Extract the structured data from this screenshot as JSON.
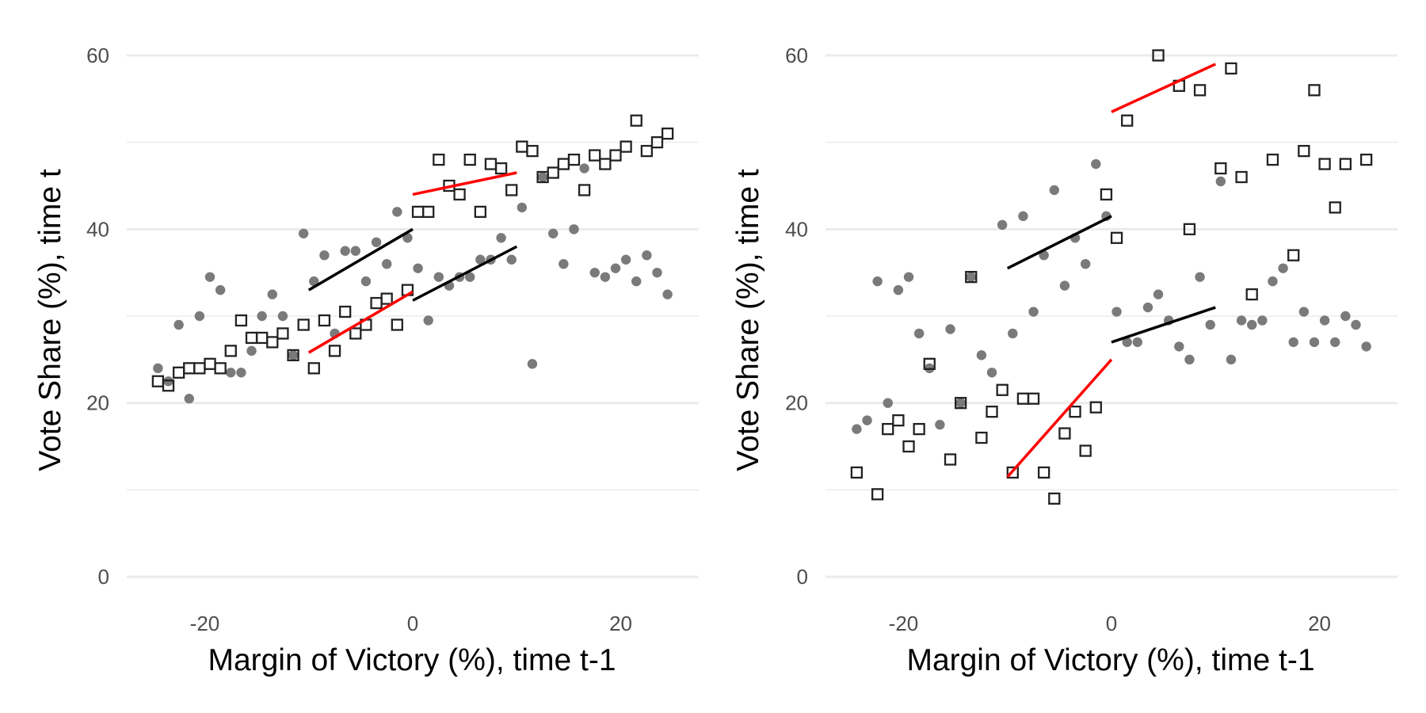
{
  "colors": {
    "background": "#ffffff",
    "grid": "#ebebeb",
    "dot": "#7a7a7a",
    "square": "#222222",
    "fit_black": "#000000",
    "fit_red": "#ff0000",
    "tick_text": "#4d4d4d",
    "axis_title": "#000000"
  },
  "chart_data": [
    {
      "type": "scatter",
      "panel": "left",
      "xlabel": "Margin of Victory (%), time t-1",
      "ylabel": "Vote Share (%), time t",
      "xlim": [
        -27.5,
        27.5
      ],
      "ylim": [
        -2,
        62
      ],
      "xticks": [
        -20,
        0,
        20
      ],
      "xtick_labels": [
        "-20",
        "0",
        "20"
      ],
      "yticks": [
        0,
        20,
        40,
        60
      ],
      "ytick_labels": [
        "0",
        "20",
        "40",
        "60"
      ],
      "grid": true,
      "series": [
        {
          "marker": "circle",
          "points": [
            [
              -24.5,
              24
            ],
            [
              -23.5,
              22.5
            ],
            [
              -22.5,
              29
            ],
            [
              -21.5,
              20.5
            ],
            [
              -20.5,
              30
            ],
            [
              -19.5,
              34.5
            ],
            [
              -18.5,
              33
            ],
            [
              -17.5,
              23.5
            ],
            [
              -16.5,
              23.5
            ],
            [
              -15.5,
              26
            ],
            [
              -14.5,
              30
            ],
            [
              -13.5,
              32.5
            ],
            [
              -12.5,
              30
            ],
            [
              -11.5,
              25.5
            ],
            [
              -10.5,
              39.5
            ],
            [
              -9.5,
              34
            ],
            [
              -8.5,
              37
            ],
            [
              -7.5,
              28
            ],
            [
              -6.5,
              37.5
            ],
            [
              -5.5,
              37.5
            ],
            [
              -4.5,
              34
            ],
            [
              -3.5,
              38.5
            ],
            [
              -2.5,
              36
            ],
            [
              -1.5,
              42
            ],
            [
              -0.5,
              39
            ],
            [
              0.5,
              35.5
            ],
            [
              1.5,
              29.5
            ],
            [
              2.5,
              34.5
            ],
            [
              3.5,
              33.5
            ],
            [
              4.5,
              34.5
            ],
            [
              5.5,
              34.5
            ],
            [
              6.5,
              36.5
            ],
            [
              7.5,
              36.5
            ],
            [
              8.5,
              39
            ],
            [
              9.5,
              36.5
            ],
            [
              10.5,
              42.5
            ],
            [
              11.5,
              24.5
            ],
            [
              12.5,
              46
            ],
            [
              13.5,
              39.5
            ],
            [
              14.5,
              36
            ],
            [
              15.5,
              40
            ],
            [
              16.5,
              47
            ],
            [
              17.5,
              35
            ],
            [
              18.5,
              34.5
            ],
            [
              19.5,
              35.5
            ],
            [
              20.5,
              36.5
            ],
            [
              21.5,
              34
            ],
            [
              22.5,
              37
            ],
            [
              23.5,
              35
            ],
            [
              24.5,
              32.5
            ]
          ]
        },
        {
          "marker": "square",
          "points": [
            [
              -24.5,
              22.5
            ],
            [
              -23.5,
              22
            ],
            [
              -22.5,
              23.5
            ],
            [
              -21.5,
              24
            ],
            [
              -20.5,
              24
            ],
            [
              -19.5,
              24.5
            ],
            [
              -18.5,
              24
            ],
            [
              -17.5,
              26
            ],
            [
              -16.5,
              29.5
            ],
            [
              -15.5,
              27.5
            ],
            [
              -14.5,
              27.5
            ],
            [
              -13.5,
              27
            ],
            [
              -12.5,
              28
            ],
            [
              -11.5,
              25.5
            ],
            [
              -10.5,
              29
            ],
            [
              -9.5,
              24
            ],
            [
              -8.5,
              29.5
            ],
            [
              -7.5,
              26
            ],
            [
              -6.5,
              30.5
            ],
            [
              -5.5,
              28
            ],
            [
              -4.5,
              29
            ],
            [
              -3.5,
              31.5
            ],
            [
              -2.5,
              32
            ],
            [
              -1.5,
              29
            ],
            [
              -0.5,
              33
            ],
            [
              0.5,
              42
            ],
            [
              1.5,
              42
            ],
            [
              2.5,
              48
            ],
            [
              3.5,
              45
            ],
            [
              4.5,
              44
            ],
            [
              5.5,
              48
            ],
            [
              6.5,
              42
            ],
            [
              7.5,
              47.5
            ],
            [
              8.5,
              47
            ],
            [
              9.5,
              44.5
            ],
            [
              10.5,
              49.5
            ],
            [
              11.5,
              49
            ],
            [
              12.5,
              46
            ],
            [
              13.5,
              46.5
            ],
            [
              14.5,
              47.5
            ],
            [
              15.5,
              48
            ],
            [
              16.5,
              44.5
            ],
            [
              17.5,
              48.5
            ],
            [
              18.5,
              47.5
            ],
            [
              19.5,
              48.5
            ],
            [
              20.5,
              49.5
            ],
            [
              21.5,
              52.5
            ],
            [
              22.5,
              49
            ],
            [
              23.5,
              50
            ],
            [
              24.5,
              51
            ]
          ]
        }
      ],
      "fit_lines": [
        {
          "color": "black",
          "x": [
            -10,
            0
          ],
          "y": [
            33,
            40
          ]
        },
        {
          "color": "black",
          "x": [
            0,
            10
          ],
          "y": [
            31.8,
            38
          ]
        },
        {
          "color": "red",
          "x": [
            -10,
            0
          ],
          "y": [
            25.8,
            32.8
          ]
        },
        {
          "color": "red",
          "x": [
            0,
            10
          ],
          "y": [
            44,
            46.5
          ]
        }
      ]
    },
    {
      "type": "scatter",
      "panel": "right",
      "xlabel": "Margin of Victory (%), time t-1",
      "ylabel": "Vote Share (%), time t",
      "xlim": [
        -27.5,
        27.5
      ],
      "ylim": [
        -2,
        62
      ],
      "xticks": [
        -20,
        0,
        20
      ],
      "xtick_labels": [
        "-20",
        "0",
        "20"
      ],
      "yticks": [
        0,
        20,
        40,
        60
      ],
      "ytick_labels": [
        "0",
        "20",
        "40",
        "60"
      ],
      "grid": true,
      "series": [
        {
          "marker": "circle",
          "points": [
            [
              -24.5,
              17
            ],
            [
              -23.5,
              18
            ],
            [
              -22.5,
              34
            ],
            [
              -21.5,
              20
            ],
            [
              -20.5,
              33
            ],
            [
              -19.5,
              34.5
            ],
            [
              -18.5,
              28
            ],
            [
              -17.5,
              24
            ],
            [
              -16.5,
              17.5
            ],
            [
              -15.5,
              28.5
            ],
            [
              -14.5,
              20
            ],
            [
              -13.5,
              34.5
            ],
            [
              -12.5,
              25.5
            ],
            [
              -11.5,
              23.5
            ],
            [
              -10.5,
              40.5
            ],
            [
              -9.5,
              28
            ],
            [
              -8.5,
              41.5
            ],
            [
              -7.5,
              30.5
            ],
            [
              -6.5,
              37
            ],
            [
              -5.5,
              44.5
            ],
            [
              -4.5,
              33.5
            ],
            [
              -3.5,
              39
            ],
            [
              -2.5,
              36
            ],
            [
              -1.5,
              47.5
            ],
            [
              -0.5,
              41.5
            ],
            [
              0.5,
              30.5
            ],
            [
              1.5,
              27
            ],
            [
              2.5,
              27
            ],
            [
              3.5,
              31
            ],
            [
              4.5,
              32.5
            ],
            [
              5.5,
              29.5
            ],
            [
              6.5,
              26.5
            ],
            [
              7.5,
              25
            ],
            [
              8.5,
              34.5
            ],
            [
              9.5,
              29
            ],
            [
              10.5,
              45.5
            ],
            [
              11.5,
              25
            ],
            [
              12.5,
              29.5
            ],
            [
              13.5,
              29
            ],
            [
              14.5,
              29.5
            ],
            [
              15.5,
              34
            ],
            [
              16.5,
              35.5
            ],
            [
              17.5,
              27
            ],
            [
              18.5,
              30.5
            ],
            [
              19.5,
              27
            ],
            [
              20.5,
              29.5
            ],
            [
              21.5,
              27
            ],
            [
              22.5,
              30
            ],
            [
              23.5,
              29
            ],
            [
              24.5,
              26.5
            ]
          ]
        },
        {
          "marker": "square",
          "points": [
            [
              -24.5,
              12
            ],
            [
              -22.5,
              9.5
            ],
            [
              -21.5,
              17
            ],
            [
              -20.5,
              18
            ],
            [
              -19.5,
              15
            ],
            [
              -18.5,
              17
            ],
            [
              -17.5,
              24.5
            ],
            [
              -15.5,
              13.5
            ],
            [
              -14.5,
              20
            ],
            [
              -13.5,
              34.5
            ],
            [
              -12.5,
              16
            ],
            [
              -11.5,
              19
            ],
            [
              -10.5,
              21.5
            ],
            [
              -9.5,
              12
            ],
            [
              -8.5,
              20.5
            ],
            [
              -7.5,
              20.5
            ],
            [
              -6.5,
              12
            ],
            [
              -5.5,
              9
            ],
            [
              -4.5,
              16.5
            ],
            [
              -3.5,
              19
            ],
            [
              -2.5,
              14.5
            ],
            [
              -1.5,
              19.5
            ],
            [
              -0.5,
              44
            ],
            [
              0.5,
              39
            ],
            [
              1.5,
              52.5
            ],
            [
              4.5,
              60
            ],
            [
              6.5,
              56.5
            ],
            [
              7.5,
              40
            ],
            [
              8.5,
              56
            ],
            [
              10.5,
              47
            ],
            [
              11.5,
              58.5
            ],
            [
              12.5,
              46
            ],
            [
              13.5,
              32.5
            ],
            [
              15.5,
              48
            ],
            [
              17.5,
              37
            ],
            [
              18.5,
              49
            ],
            [
              19.5,
              56
            ],
            [
              20.5,
              47.5
            ],
            [
              21.5,
              42.5
            ],
            [
              22.5,
              47.5
            ],
            [
              24.5,
              48
            ]
          ]
        }
      ],
      "fit_lines": [
        {
          "color": "black",
          "x": [
            -10,
            0
          ],
          "y": [
            35.5,
            41.5
          ]
        },
        {
          "color": "black",
          "x": [
            0,
            10
          ],
          "y": [
            27,
            31
          ]
        },
        {
          "color": "red",
          "x": [
            -10,
            0
          ],
          "y": [
            11.5,
            25
          ]
        },
        {
          "color": "red",
          "x": [
            0,
            10
          ],
          "y": [
            53.5,
            59
          ]
        }
      ]
    }
  ]
}
